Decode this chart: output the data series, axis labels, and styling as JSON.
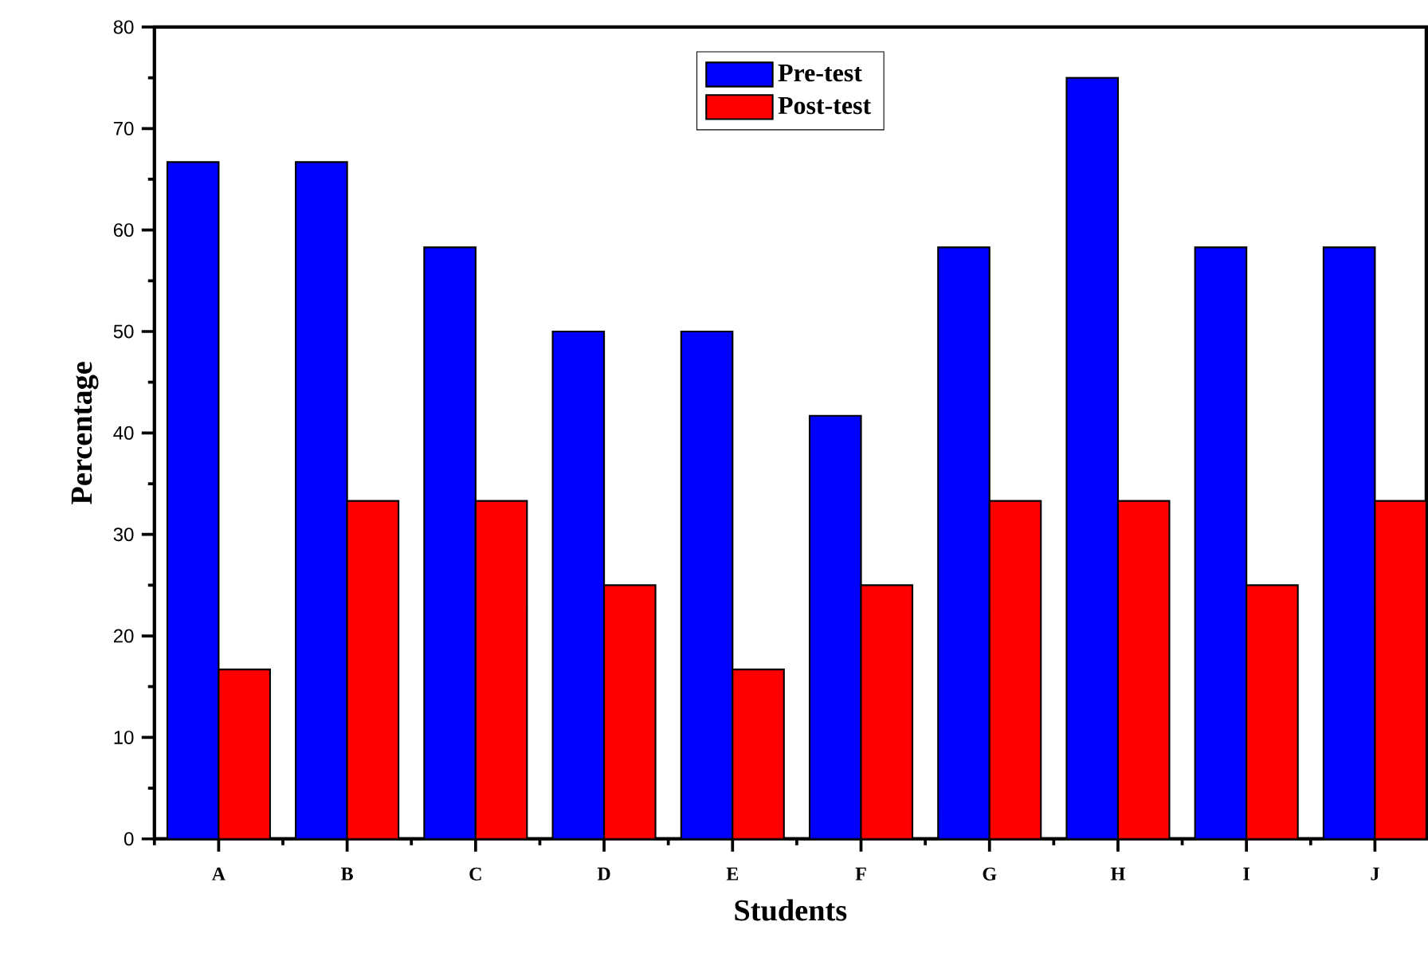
{
  "chart_data": {
    "type": "bar",
    "xlabel": "Students",
    "ylabel": "Percentage",
    "categories": [
      "A",
      "B",
      "C",
      "D",
      "E",
      "F",
      "G",
      "H",
      "I",
      "J"
    ],
    "series": [
      {
        "name": "Pre-test",
        "color": "#0000ff",
        "values": [
          66.7,
          66.7,
          58.3,
          50,
          50,
          41.7,
          58.3,
          75,
          58.3,
          58.3
        ]
      },
      {
        "name": "Post-test",
        "color": "#ff0000",
        "values": [
          16.7,
          33.3,
          33.3,
          25,
          16.7,
          25,
          33.3,
          33.3,
          25,
          33.3
        ]
      }
    ],
    "ylim": [
      0,
      80
    ],
    "yticks": [
      0,
      10,
      20,
      30,
      40,
      50,
      60,
      70,
      80
    ],
    "grid": false,
    "legend": "top"
  }
}
